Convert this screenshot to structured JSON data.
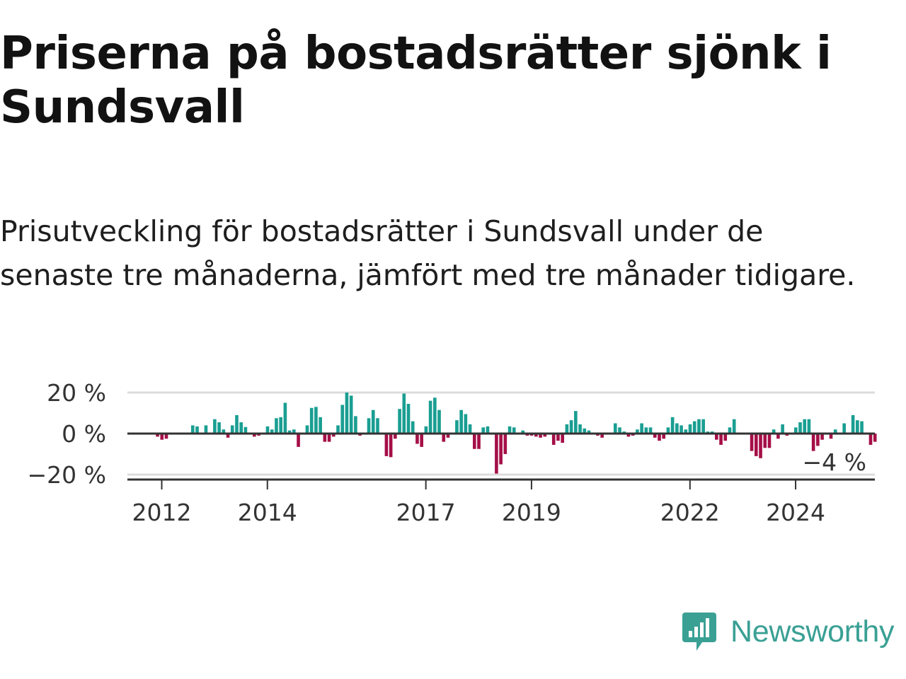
{
  "title": "Priserna på bostadsrätter sjönk i Sundsvall",
  "subtitle": "Prisutveckling för bostadsrätter i Sundsvall under de senaste tre månaderna, jämfört med tre månader tidigare.",
  "logo": {
    "text": "Newsworthy"
  },
  "colors": {
    "positive": "#1a9e92",
    "negative": "#a50f47",
    "logo": "#3aa094"
  },
  "chart_data": {
    "type": "bar",
    "yticks": [
      {
        "value": 20,
        "label": "20 %"
      },
      {
        "value": 0,
        "label": "0 %"
      },
      {
        "value": -20,
        "label": "−20 %"
      }
    ],
    "ylim": [
      -22,
      22
    ],
    "xticks": [
      {
        "value": 2012,
        "label": "2012"
      },
      {
        "value": 2014,
        "label": "2014"
      },
      {
        "value": 2017,
        "label": "2017"
      },
      {
        "value": 2019,
        "label": "2019"
      },
      {
        "value": 2022,
        "label": "2022"
      },
      {
        "value": 2024,
        "label": "2024"
      }
    ],
    "xlim": [
      2011.35,
      2025.5
    ],
    "start": 2011.92,
    "step": 0.08333,
    "grid": true,
    "last_label": "−4 %",
    "values": [
      -1.5,
      -3,
      -2.5,
      0,
      0,
      0,
      0,
      0,
      4,
      3.5,
      0,
      4,
      0,
      7,
      5.5,
      2,
      -2,
      4,
      9,
      5.5,
      3.2,
      0,
      -1.5,
      -1,
      0,
      3.5,
      2,
      7.5,
      8,
      15,
      1.5,
      2,
      -6.5,
      0,
      4,
      12.5,
      13,
      8,
      -4,
      -4,
      -1.5,
      4,
      14,
      20,
      18.5,
      8.5,
      -1,
      0,
      7.5,
      11.5,
      7.5,
      0,
      -11,
      -11.5,
      -2.5,
      12,
      19.5,
      14.5,
      6,
      -5,
      -6.5,
      3.5,
      16,
      17.5,
      11.5,
      -4,
      -2,
      -0.5,
      6.5,
      11.5,
      9.5,
      4.5,
      -7.5,
      -7.5,
      3,
      3.5,
      0,
      -19.5,
      -15,
      -10,
      3.5,
      3,
      0,
      1.5,
      -1,
      -1,
      -1.5,
      -2,
      -1.5,
      0,
      -5.5,
      -3.5,
      -4.5,
      4.5,
      6.5,
      11,
      4.5,
      2.5,
      1.5,
      0.5,
      -1,
      -2,
      -0.5,
      0,
      5,
      3,
      1,
      -1.5,
      -1,
      2,
      5,
      3,
      3,
      -2,
      -3.5,
      -2.5,
      3,
      8,
      5,
      4,
      2,
      4.5,
      6,
      7,
      7,
      1,
      1,
      -3,
      -5.5,
      -3.5,
      3,
      7,
      0,
      0,
      0,
      -8.5,
      -11,
      -12,
      -7,
      -7,
      2,
      -2.5,
      4.5,
      -1,
      0,
      3,
      5.5,
      7,
      7,
      -8.5,
      -6,
      -3,
      0,
      -2.5,
      2,
      0,
      5,
      0,
      9,
      6.5,
      6,
      0,
      -5.5,
      -4
    ]
  }
}
